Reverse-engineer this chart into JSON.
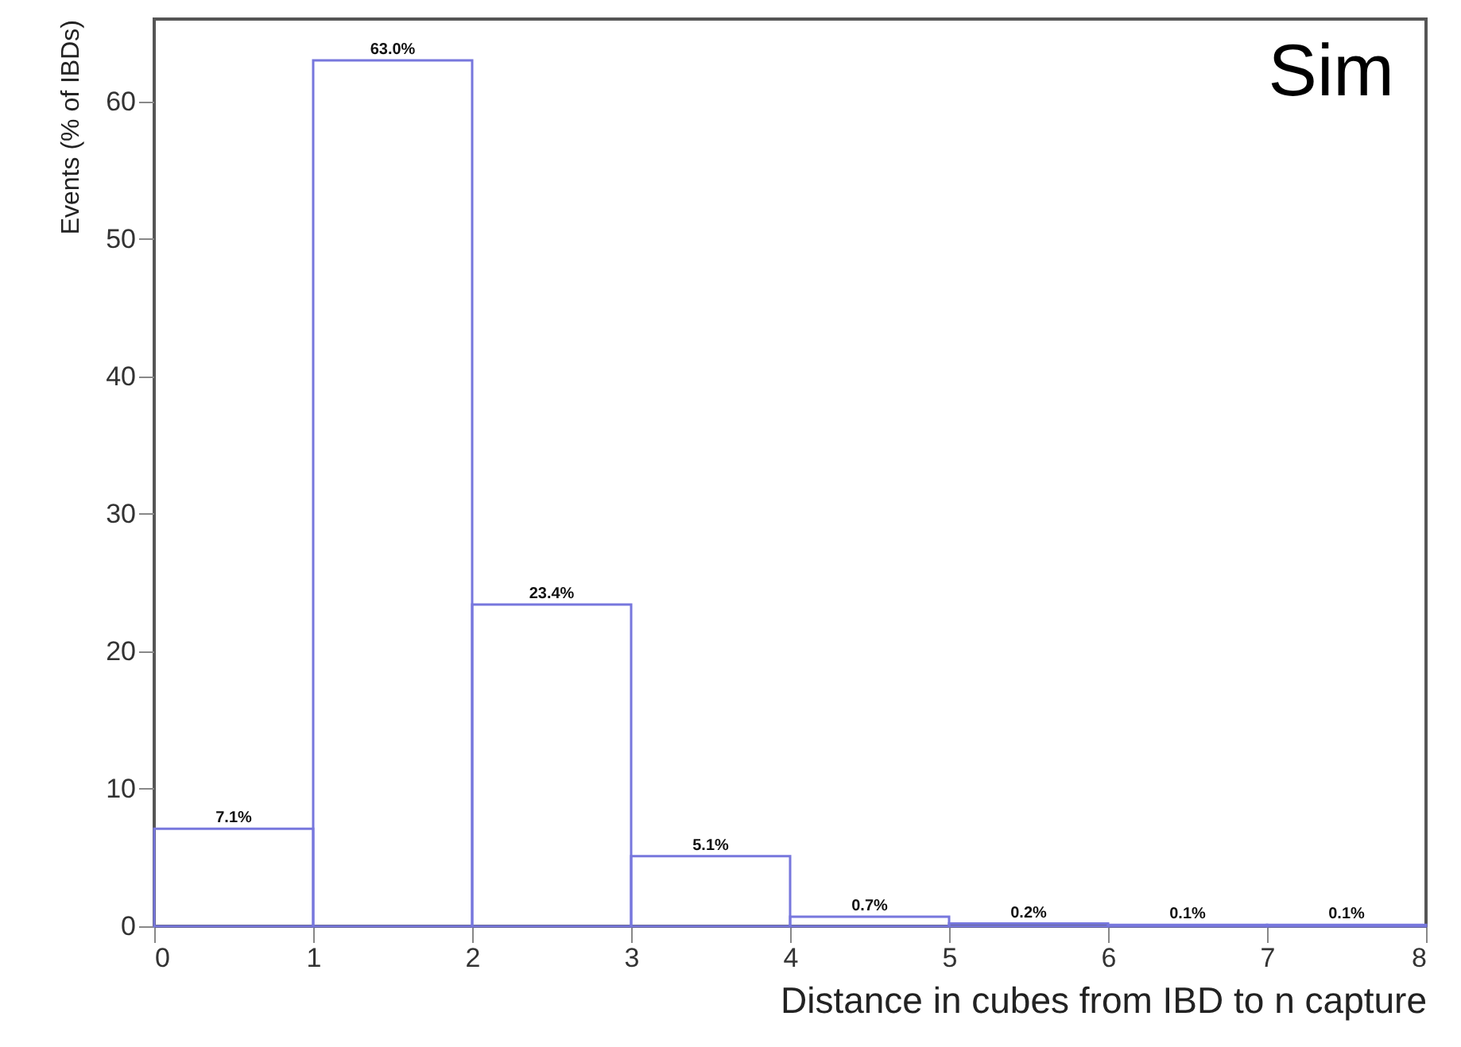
{
  "chart_data": {
    "type": "histogram",
    "xlabel": "Distance in cubes from IBD to n capture",
    "ylabel": "Events (% of IBDs)",
    "bins": [
      0,
      1,
      2,
      3,
      4,
      5,
      6,
      7,
      8
    ],
    "values": [
      7.1,
      63.0,
      23.4,
      5.1,
      0.7,
      0.2,
      0.1,
      0.1
    ],
    "value_labels": [
      "7.1%",
      "63.0%",
      "23.4%",
      "5.1%",
      "0.7%",
      "0.2%",
      "0.1%",
      "0.1%"
    ],
    "color": "#7777dd",
    "xlim": [
      0,
      8
    ],
    "xticks": [
      0,
      1,
      2,
      3,
      4,
      5,
      6,
      7,
      8
    ],
    "ylim": [
      0,
      66
    ],
    "yticks": [
      0,
      10,
      20,
      30,
      40,
      50,
      60
    ],
    "annotations": [
      "Sim"
    ]
  }
}
